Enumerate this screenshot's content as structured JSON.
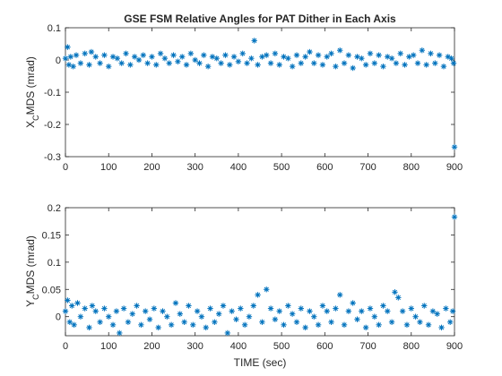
{
  "chart_data": [
    {
      "type": "scatter",
      "title": "GSE FSM Relative Angles for PAT Dither in Each Axis",
      "ylabel": {
        "base": "X",
        "sub": "C",
        "rest": "MDS (mrad)"
      },
      "xlabel": "",
      "xlim": [
        0,
        900
      ],
      "ylim": [
        -0.3,
        0.1
      ],
      "xticks": [
        0,
        100,
        200,
        300,
        400,
        500,
        600,
        700,
        800,
        900
      ],
      "yticks": [
        0.1,
        0,
        -0.1,
        -0.2,
        -0.3
      ],
      "xtick_labels": [
        "0",
        "100",
        "200",
        "300",
        "400",
        "500",
        "600",
        "700",
        "800",
        "900"
      ],
      "ytick_labels": [
        "0.1",
        "0",
        "-0.1",
        "-0.2",
        "-0.3"
      ],
      "grid": false,
      "marker": "asterisk",
      "color": "#0072BD",
      "series": [
        {
          "x": [
            0,
            5,
            8,
            12,
            18,
            25,
            35,
            45,
            55,
            60,
            70,
            80,
            90,
            100,
            110,
            120,
            130,
            140,
            150,
            160,
            170,
            180,
            190,
            200,
            210,
            220,
            230,
            240,
            250,
            260,
            270,
            280,
            290,
            300,
            310,
            320,
            330,
            340,
            350,
            360,
            370,
            380,
            390,
            400,
            410,
            420,
            430,
            437,
            445,
            455,
            465,
            475,
            485,
            495,
            505,
            515,
            525,
            535,
            545,
            555,
            565,
            575,
            585,
            595,
            605,
            615,
            625,
            635,
            645,
            655,
            665,
            675,
            685,
            695,
            705,
            715,
            725,
            735,
            745,
            755,
            765,
            775,
            785,
            795,
            805,
            815,
            825,
            835,
            845,
            855,
            865,
            875,
            885,
            893,
            898,
            900
          ],
          "y": [
            0.005,
            0.04,
            -0.015,
            0.01,
            -0.02,
            0.015,
            -0.01,
            0.02,
            -0.015,
            0.025,
            0.01,
            -0.01,
            0.015,
            -0.02,
            0.01,
            0.005,
            -0.01,
            0.02,
            -0.015,
            0.01,
            0.0,
            0.015,
            -0.01,
            0.01,
            -0.015,
            0.02,
            0.005,
            -0.01,
            0.015,
            -0.005,
            0.01,
            -0.015,
            0.02,
            0.0,
            -0.01,
            0.015,
            -0.02,
            0.01,
            0.005,
            -0.01,
            0.015,
            -0.015,
            0.01,
            -0.005,
            0.02,
            -0.01,
            0.005,
            0.06,
            -0.015,
            0.01,
            0.015,
            -0.01,
            0.02,
            -0.015,
            0.01,
            0.005,
            -0.02,
            0.015,
            -0.01,
            0.01,
            0.025,
            -0.01,
            0.015,
            -0.015,
            0.01,
            0.02,
            -0.02,
            0.03,
            -0.01,
            0.015,
            -0.025,
            0.01,
            0.005,
            -0.015,
            0.02,
            -0.01,
            0.015,
            -0.02,
            0.01,
            0.005,
            -0.01,
            0.02,
            -0.015,
            0.01,
            0.015,
            -0.01,
            0.03,
            -0.015,
            0.02,
            -0.01,
            0.015,
            -0.02,
            0.01,
            0.005,
            -0.01,
            -0.27
          ]
        }
      ]
    },
    {
      "type": "scatter",
      "title": "",
      "ylabel": {
        "base": "Y",
        "sub": "C",
        "rest": "MDS (mrad)"
      },
      "xlabel": "TIME (sec)",
      "xlim": [
        0,
        900
      ],
      "ylim": [
        -0.035,
        0.2
      ],
      "xticks": [
        0,
        100,
        200,
        300,
        400,
        500,
        600,
        700,
        800,
        900
      ],
      "yticks": [
        0.2,
        0.15,
        0.1,
        0.05,
        0
      ],
      "xtick_labels": [
        "0",
        "100",
        "200",
        "300",
        "400",
        "500",
        "600",
        "700",
        "800",
        "900"
      ],
      "ytick_labels": [
        "0.2",
        "0.15",
        "0.1",
        "0.05",
        "0"
      ],
      "grid": false,
      "marker": "asterisk",
      "color": "#0072BD",
      "series": [
        {
          "x": [
            0,
            5,
            10,
            15,
            20,
            28,
            35,
            45,
            55,
            62,
            70,
            80,
            90,
            100,
            110,
            118,
            125,
            135,
            145,
            155,
            165,
            175,
            185,
            195,
            205,
            215,
            225,
            235,
            245,
            255,
            265,
            275,
            285,
            295,
            305,
            315,
            325,
            335,
            345,
            355,
            365,
            375,
            385,
            395,
            405,
            415,
            425,
            435,
            445,
            455,
            465,
            475,
            485,
            495,
            505,
            515,
            525,
            535,
            545,
            555,
            565,
            575,
            585,
            595,
            605,
            615,
            625,
            635,
            645,
            655,
            665,
            675,
            685,
            695,
            705,
            715,
            725,
            735,
            745,
            755,
            762,
            770,
            780,
            790,
            800,
            810,
            820,
            830,
            840,
            850,
            860,
            870,
            880,
            890,
            896,
            900
          ],
          "y": [
            0.01,
            0.03,
            -0.01,
            0.02,
            -0.015,
            0.025,
            0.0,
            0.015,
            -0.02,
            0.02,
            0.01,
            -0.01,
            0.015,
            0.0,
            -0.015,
            0.01,
            -0.03,
            0.015,
            -0.01,
            0.005,
            0.02,
            -0.015,
            0.01,
            -0.005,
            0.015,
            -0.02,
            0.01,
            0.0,
            -0.015,
            0.025,
            0.005,
            -0.01,
            0.02,
            -0.015,
            0.01,
            0.0,
            -0.02,
            0.015,
            -0.01,
            0.005,
            0.02,
            -0.03,
            0.01,
            -0.005,
            0.015,
            -0.015,
            0.0,
            0.02,
            0.04,
            -0.01,
            0.05,
            0.015,
            -0.005,
            0.01,
            -0.015,
            0.02,
            0.005,
            -0.01,
            0.015,
            -0.02,
            0.01,
            0.0,
            -0.015,
            0.02,
            0.01,
            -0.01,
            0.015,
            0.04,
            -0.015,
            0.01,
            0.025,
            -0.005,
            0.01,
            -0.02,
            0.015,
            0.0,
            -0.015,
            0.02,
            0.01,
            -0.01,
            0.045,
            0.035,
            0.01,
            -0.015,
            0.015,
            0.0,
            -0.01,
            0.02,
            -0.015,
            0.01,
            0.005,
            -0.02,
            0.015,
            -0.01,
            0.01,
            0.183
          ]
        }
      ]
    }
  ]
}
